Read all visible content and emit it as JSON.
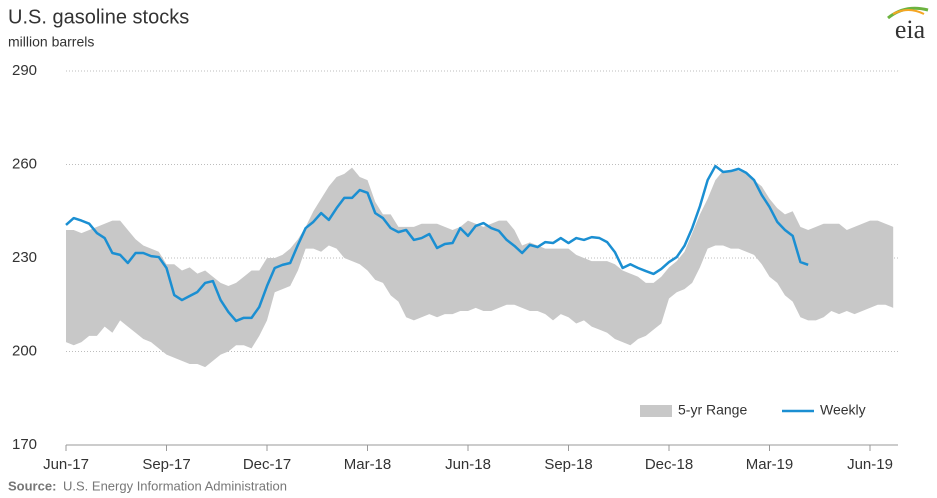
{
  "chart_data": {
    "type": "line",
    "title": "U.S. gasoline stocks",
    "subtitle": "million barrels",
    "source_label": "Source:",
    "source": "U.S. Energy Information Administration",
    "logo": "eia",
    "categories": [
      "Jun-17",
      null,
      null,
      null,
      null,
      null,
      null,
      null,
      null,
      null,
      null,
      null,
      null,
      "Sep-17",
      null,
      null,
      null,
      null,
      null,
      null,
      null,
      null,
      null,
      null,
      null,
      null,
      "Dec-17",
      null,
      null,
      null,
      null,
      null,
      null,
      null,
      null,
      null,
      null,
      null,
      null,
      "Mar-18",
      null,
      null,
      null,
      null,
      null,
      null,
      null,
      null,
      null,
      null,
      null,
      null,
      "Jun-18",
      null,
      null,
      null,
      null,
      null,
      null,
      null,
      null,
      null,
      null,
      null,
      null,
      "Sep-18",
      null,
      null,
      null,
      null,
      null,
      null,
      null,
      null,
      null,
      null,
      null,
      null,
      "Dec-18",
      null,
      null,
      null,
      null,
      null,
      null,
      null,
      null,
      null,
      null,
      null,
      null,
      "Mar-19",
      null,
      null,
      null,
      null,
      null,
      null,
      null,
      null,
      null,
      null,
      null,
      null,
      "Jun-19",
      null,
      null,
      null
    ],
    "series": [
      {
        "name": "5-yr Range",
        "color": "#c8c8c8",
        "high": [
          239,
          239,
          238,
          239,
          240,
          241,
          242,
          242,
          239,
          236,
          234,
          233,
          232,
          228,
          228,
          226,
          227,
          225,
          226,
          224,
          222,
          221,
          222,
          224,
          226,
          226,
          230,
          230,
          231,
          233,
          236,
          240,
          245,
          249,
          253,
          256,
          257,
          259,
          256,
          255,
          248,
          244,
          244,
          240,
          240,
          240,
          241,
          241,
          241,
          240,
          239,
          240,
          242,
          241,
          240,
          241,
          242,
          242,
          239,
          234,
          235,
          234,
          233,
          233,
          233,
          233,
          231,
          230,
          229,
          229,
          229,
          228,
          226,
          225,
          224,
          222,
          222,
          224,
          227,
          229,
          232,
          238,
          244,
          249,
          255,
          258,
          258,
          258,
          257,
          255,
          253,
          249,
          246,
          244,
          245,
          240,
          239,
          240,
          241,
          241,
          241,
          239,
          240,
          241,
          242,
          242,
          241,
          240
        ],
        "low": [
          203,
          202,
          203,
          205,
          205,
          208,
          206,
          210,
          208,
          206,
          204,
          203,
          201,
          199,
          198,
          197,
          196,
          196,
          195,
          197,
          199,
          200,
          202,
          202,
          201,
          205,
          210,
          219,
          220,
          221,
          226,
          233,
          233,
          232,
          234,
          233,
          230,
          229,
          228,
          226,
          223,
          222,
          218,
          216,
          211,
          210,
          211,
          212,
          211,
          212,
          212,
          213,
          213,
          214,
          213,
          213,
          214,
          215,
          215,
          214,
          213,
          213,
          212,
          210,
          212,
          211,
          209,
          210,
          208,
          207,
          206,
          204,
          203,
          202,
          204,
          205,
          207,
          209,
          217,
          219,
          220,
          222,
          227,
          233,
          234,
          234,
          233,
          233,
          232,
          231,
          228,
          224,
          222,
          218,
          216,
          211,
          210,
          210,
          211,
          213,
          212,
          213,
          212,
          213,
          214,
          215,
          215,
          214
        ]
      },
      {
        "name": "Weekly",
        "color": "#1b8fd2",
        "values": [
          240.6,
          242.8,
          242,
          241,
          238,
          236.4,
          231.6,
          231,
          228.4,
          231.6,
          231.6,
          230.6,
          230.3,
          226.8,
          218.1,
          216.5,
          217.8,
          219.1,
          222,
          222.6,
          216.5,
          212.7,
          209.8,
          210.8,
          210.8,
          214.3,
          221,
          226.8,
          227.8,
          228.4,
          234.2,
          239.6,
          241.6,
          244.4,
          242.2,
          246,
          249.3,
          249.3,
          251.8,
          250.9,
          244.4,
          242.8,
          239.6,
          238.3,
          239,
          235.8,
          236.4,
          237.7,
          233.2,
          234.5,
          234.8,
          239.6,
          237.1,
          240.3,
          241.2,
          239.6,
          238.7,
          235.8,
          233.9,
          231.6,
          234.2,
          233.5,
          235.1,
          234.8,
          236.4,
          234.8,
          236.4,
          235.8,
          236.7,
          236.4,
          235.1,
          231.9,
          226.8,
          228,
          226.8,
          225.8,
          224.9,
          226.5,
          228.7,
          230.3,
          233.9,
          239.6,
          246.6,
          255,
          259.5,
          257.6,
          257.9,
          258.6,
          257.3,
          255,
          250.2,
          246.4,
          241.6,
          239,
          237.1,
          228.7,
          227.8,
          null,
          null,
          null,
          null,
          null,
          null,
          null,
          null,
          null,
          null,
          null
        ]
      }
    ],
    "ylim": [
      170,
      290
    ],
    "yticks": [
      170,
      200,
      230,
      260,
      290
    ],
    "grid": true,
    "legend": "lower right"
  }
}
